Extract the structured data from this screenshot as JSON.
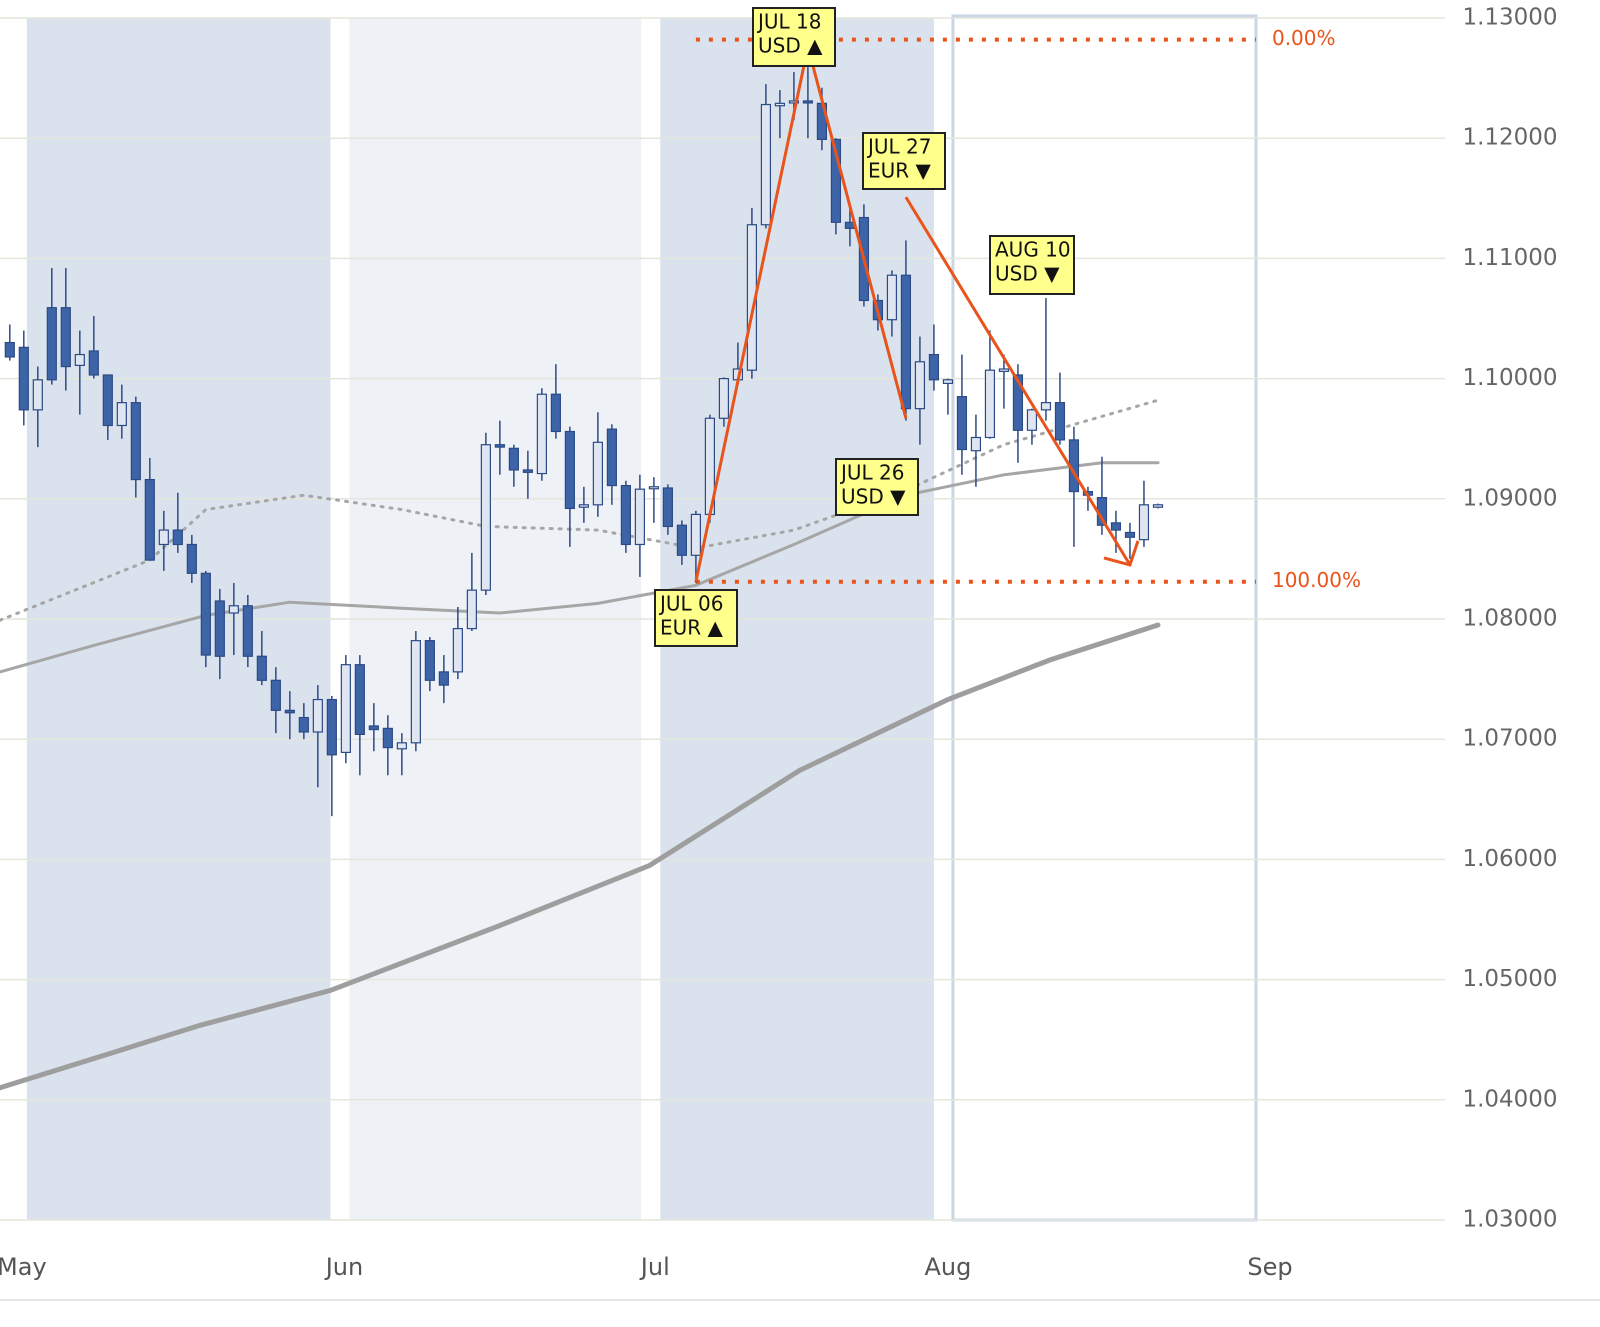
{
  "chart_data": {
    "type": "candlestick",
    "categories": [
      null,
      null,
      null,
      null,
      null,
      null,
      null,
      null,
      null,
      null,
      null,
      null,
      null,
      null,
      null,
      null,
      null,
      null,
      null,
      null,
      null,
      null,
      null,
      null,
      null,
      null,
      null,
      null,
      null,
      null,
      null,
      null,
      null,
      null,
      null,
      null,
      null,
      null,
      null,
      null,
      null,
      null,
      null,
      null,
      null,
      null,
      null,
      null,
      null,
      null,
      null,
      null,
      null,
      null,
      null,
      null,
      null,
      null,
      null,
      null,
      null,
      null,
      null,
      null,
      null,
      null,
      null,
      null,
      null,
      null,
      null,
      null,
      null,
      null,
      null,
      null,
      null,
      null,
      null,
      null,
      null,
      null,
      null
    ],
    "open": [
      1.103,
      1.1026,
      1.0974,
      1.1059,
      1.1059,
      1.1011,
      1.1023,
      1.1003,
      1.0961,
      1.098,
      1.0916,
      1.0862,
      1.0874,
      1.0862,
      1.0838,
      1.0815,
      1.0805,
      1.0811,
      1.0769,
      1.0749,
      1.0724,
      1.0718,
      1.0706,
      1.0733,
      1.0689,
      1.0762,
      1.0711,
      1.0709,
      1.0692,
      1.0697,
      1.0782,
      1.0756,
      1.0756,
      1.0792,
      1.0824,
      1.0945,
      1.0942,
      1.0924,
      1.0921,
      1.0987,
      1.0956,
      1.0893,
      1.0895,
      1.0958,
      1.0911,
      1.0862,
      1.0909,
      1.0909,
      1.0878,
      1.0853,
      1.0887,
      1.0967,
      1.0999,
      1.1007,
      1.1128,
      1.1227,
      1.123,
      1.1231,
      1.1229,
      1.1199,
      1.113,
      1.1134,
      1.1065,
      1.1049,
      1.1086,
      1.0975,
      1.102,
      1.0996,
      1.0985,
      1.094,
      1.0951,
      1.1006,
      1.1003,
      1.0957,
      1.0974,
      1.098,
      1.0949,
      1.0906,
      1.0901,
      1.088,
      1.0872,
      1.0866,
      1.0893
    ],
    "high": [
      1.1045,
      1.104,
      1.101,
      1.1092,
      1.1092,
      1.104,
      1.1052,
      1.1003,
      1.0995,
      1.0985,
      1.0934,
      1.089,
      1.0905,
      1.087,
      1.084,
      1.0825,
      1.083,
      1.082,
      1.079,
      1.076,
      1.074,
      1.073,
      1.0745,
      1.0736,
      1.077,
      1.077,
      1.073,
      1.072,
      1.0705,
      1.079,
      1.0785,
      1.077,
      1.081,
      1.0855,
      1.0955,
      1.0965,
      1.0945,
      1.094,
      1.0992,
      1.1012,
      1.096,
      1.091,
      1.0972,
      1.0962,
      1.0915,
      1.092,
      1.0918,
      1.0912,
      1.0882,
      1.089,
      1.097,
      1.1001,
      1.103,
      1.1142,
      1.1245,
      1.124,
      1.1255,
      1.1276,
      1.1242,
      1.12,
      1.1145,
      1.1145,
      1.107,
      1.109,
      1.1115,
      1.1035,
      1.1045,
      1.1,
      1.102,
      1.097,
      1.104,
      1.102,
      1.1012,
      1.0975,
      1.1067,
      1.1005,
      1.096,
      1.091,
      1.0935,
      1.089,
      1.088,
      1.0915,
      1.0896
    ],
    "low": [
      1.1015,
      1.0961,
      1.0943,
      1.0995,
      1.099,
      1.097,
      1.1,
      1.0949,
      1.095,
      1.0901,
      1.0849,
      1.084,
      1.0855,
      1.083,
      1.076,
      1.075,
      1.077,
      1.076,
      1.0745,
      1.0705,
      1.07,
      1.07,
      1.066,
      1.0636,
      1.068,
      1.067,
      1.069,
      1.067,
      1.067,
      1.069,
      1.074,
      1.073,
      1.075,
      1.079,
      1.082,
      1.092,
      1.091,
      1.09,
      1.0915,
      1.095,
      1.086,
      1.088,
      1.0885,
      1.0895,
      1.0855,
      1.0835,
      1.088,
      1.087,
      1.0845,
      1.083,
      1.088,
      1.096,
      1.0995,
      1.1,
      1.1125,
      1.12,
      1.1215,
      1.12,
      1.119,
      1.112,
      1.111,
      1.106,
      1.104,
      1.1035,
      1.0965,
      1.0945,
      1.099,
      1.097,
      1.092,
      1.091,
      1.095,
      1.0975,
      1.093,
      1.0945,
      1.0965,
      1.0945,
      1.086,
      1.089,
      1.087,
      1.0855,
      1.085,
      1.086,
      1.0892
    ],
    "close": [
      1.1018,
      1.0974,
      1.0999,
      1.0999,
      1.101,
      1.102,
      1.1003,
      1.0961,
      1.098,
      1.0916,
      1.0849,
      1.0874,
      1.0862,
      1.0838,
      1.077,
      1.0769,
      1.0811,
      1.0769,
      1.0749,
      1.0724,
      1.0722,
      1.0706,
      1.0733,
      1.0687,
      1.0762,
      1.0704,
      1.0708,
      1.0693,
      1.0697,
      1.0782,
      1.0749,
      1.0745,
      1.0792,
      1.0824,
      1.0945,
      1.0943,
      1.0924,
      1.0922,
      1.0987,
      1.0956,
      1.0892,
      1.0895,
      1.0947,
      1.0911,
      1.0862,
      1.0908,
      1.091,
      1.0877,
      1.0853,
      1.0887,
      1.0967,
      1.1,
      1.1008,
      1.1128,
      1.1228,
      1.1229,
      1.1231,
      1.123,
      1.1199,
      1.113,
      1.1125,
      1.1065,
      1.1049,
      1.1086,
      1.0975,
      1.1014,
      1.0999,
      1.0999,
      1.0941,
      1.0951,
      1.1007,
      1.1008,
      1.0957,
      1.0974,
      1.098,
      1.0949,
      1.0906,
      1.0903,
      1.0878,
      1.0874,
      1.0868,
      1.0895,
      1.0895
    ],
    "up_color": "#dfe6f2",
    "down_color": "#3e64a8",
    "edge_color": "#2c4a85",
    "overlays": [
      {
        "color": "#a6a6a6",
        "style": "dotted",
        "width": 3,
        "x": [
          -0.7,
          10,
          14,
          21,
          28,
          34,
          42,
          49,
          56,
          64,
          71,
          82
        ],
        "values": [
          1.0799,
          1.0849,
          1.0891,
          1.0903,
          1.0891,
          1.0877,
          1.0874,
          1.0859,
          1.0874,
          1.0907,
          1.0945,
          1.0982
        ]
      },
      {
        "color": "#a6a6a6",
        "style": "solid",
        "width": 3,
        "x": [
          -0.7,
          6,
          14,
          20,
          28,
          35,
          42,
          49,
          56,
          64,
          71,
          78,
          82
        ],
        "values": [
          1.0756,
          1.0778,
          1.0803,
          1.0814,
          1.0809,
          1.0805,
          1.0813,
          1.0828,
          1.0862,
          1.0903,
          1.092,
          1.093,
          1.093
        ]
      },
      {
        "color": "#9e9e9e",
        "style": "solid",
        "width": 5,
        "x": [
          -0.7,
          13.6,
          22.9,
          35,
          45.7,
          56.4,
          67,
          74.3,
          82
        ],
        "values": [
          1.041,
          1.0462,
          1.0491,
          1.0545,
          1.0595,
          1.0674,
          1.0733,
          1.0766,
          1.0795
        ]
      }
    ],
    "trend_lines": [
      {
        "color": "#e8541c",
        "x": [
          49,
          57,
          64
        ],
        "values": [
          1.0831,
          1.1276,
          1.0967
        ]
      },
      {
        "color": "#e8541c",
        "x": [
          64,
          80
        ],
        "values": [
          1.1151,
          1.0845
        ]
      }
    ],
    "fib_color": "#e8541c",
    "fib_xlim": [
      49,
      89
    ],
    "fib_levels": [
      {
        "value": 1.1282,
        "label": "0.00%"
      },
      {
        "value": 1.0831,
        "label": "100.00%"
      }
    ],
    "annotations": [
      {
        "lines": [
          "JUL 18",
          "USD ▲"
        ]
      },
      {
        "lines": [
          "JUL 27",
          "EUR ▼"
        ]
      },
      {
        "lines": [
          "AUG 10",
          "USD ▼"
        ]
      },
      {
        "lines": [
          "JUL 26",
          "USD ▼"
        ]
      },
      {
        "lines": [
          "JUL 06",
          "EUR ▲"
        ]
      }
    ],
    "xlim": [
      -0.7,
      102.5
    ],
    "xticks": [
      {
        "value": 0.86,
        "label": "May"
      },
      {
        "value": 23.9,
        "label": "Jun"
      },
      {
        "value": 46.1,
        "label": "Jul"
      },
      {
        "value": 67,
        "label": "Aug"
      },
      {
        "value": 90,
        "label": "Sep"
      }
    ],
    "ylim": [
      1.03,
      1.13
    ],
    "yticks": [
      {
        "value": 1.13,
        "label": "1.13000"
      },
      {
        "value": 1.12,
        "label": "1.12000"
      },
      {
        "value": 1.11,
        "label": "1.11000"
      },
      {
        "value": 1.1,
        "label": "1.10000"
      },
      {
        "value": 1.09,
        "label": "1.09000"
      },
      {
        "value": 1.08,
        "label": "1.08000"
      },
      {
        "value": 1.07,
        "label": "1.07000"
      },
      {
        "value": 1.06,
        "label": "1.06000"
      },
      {
        "value": 1.05,
        "label": "1.05000"
      },
      {
        "value": 1.04,
        "label": "1.04000"
      },
      {
        "value": 1.03,
        "label": "1.03000"
      }
    ],
    "grid": true
  }
}
